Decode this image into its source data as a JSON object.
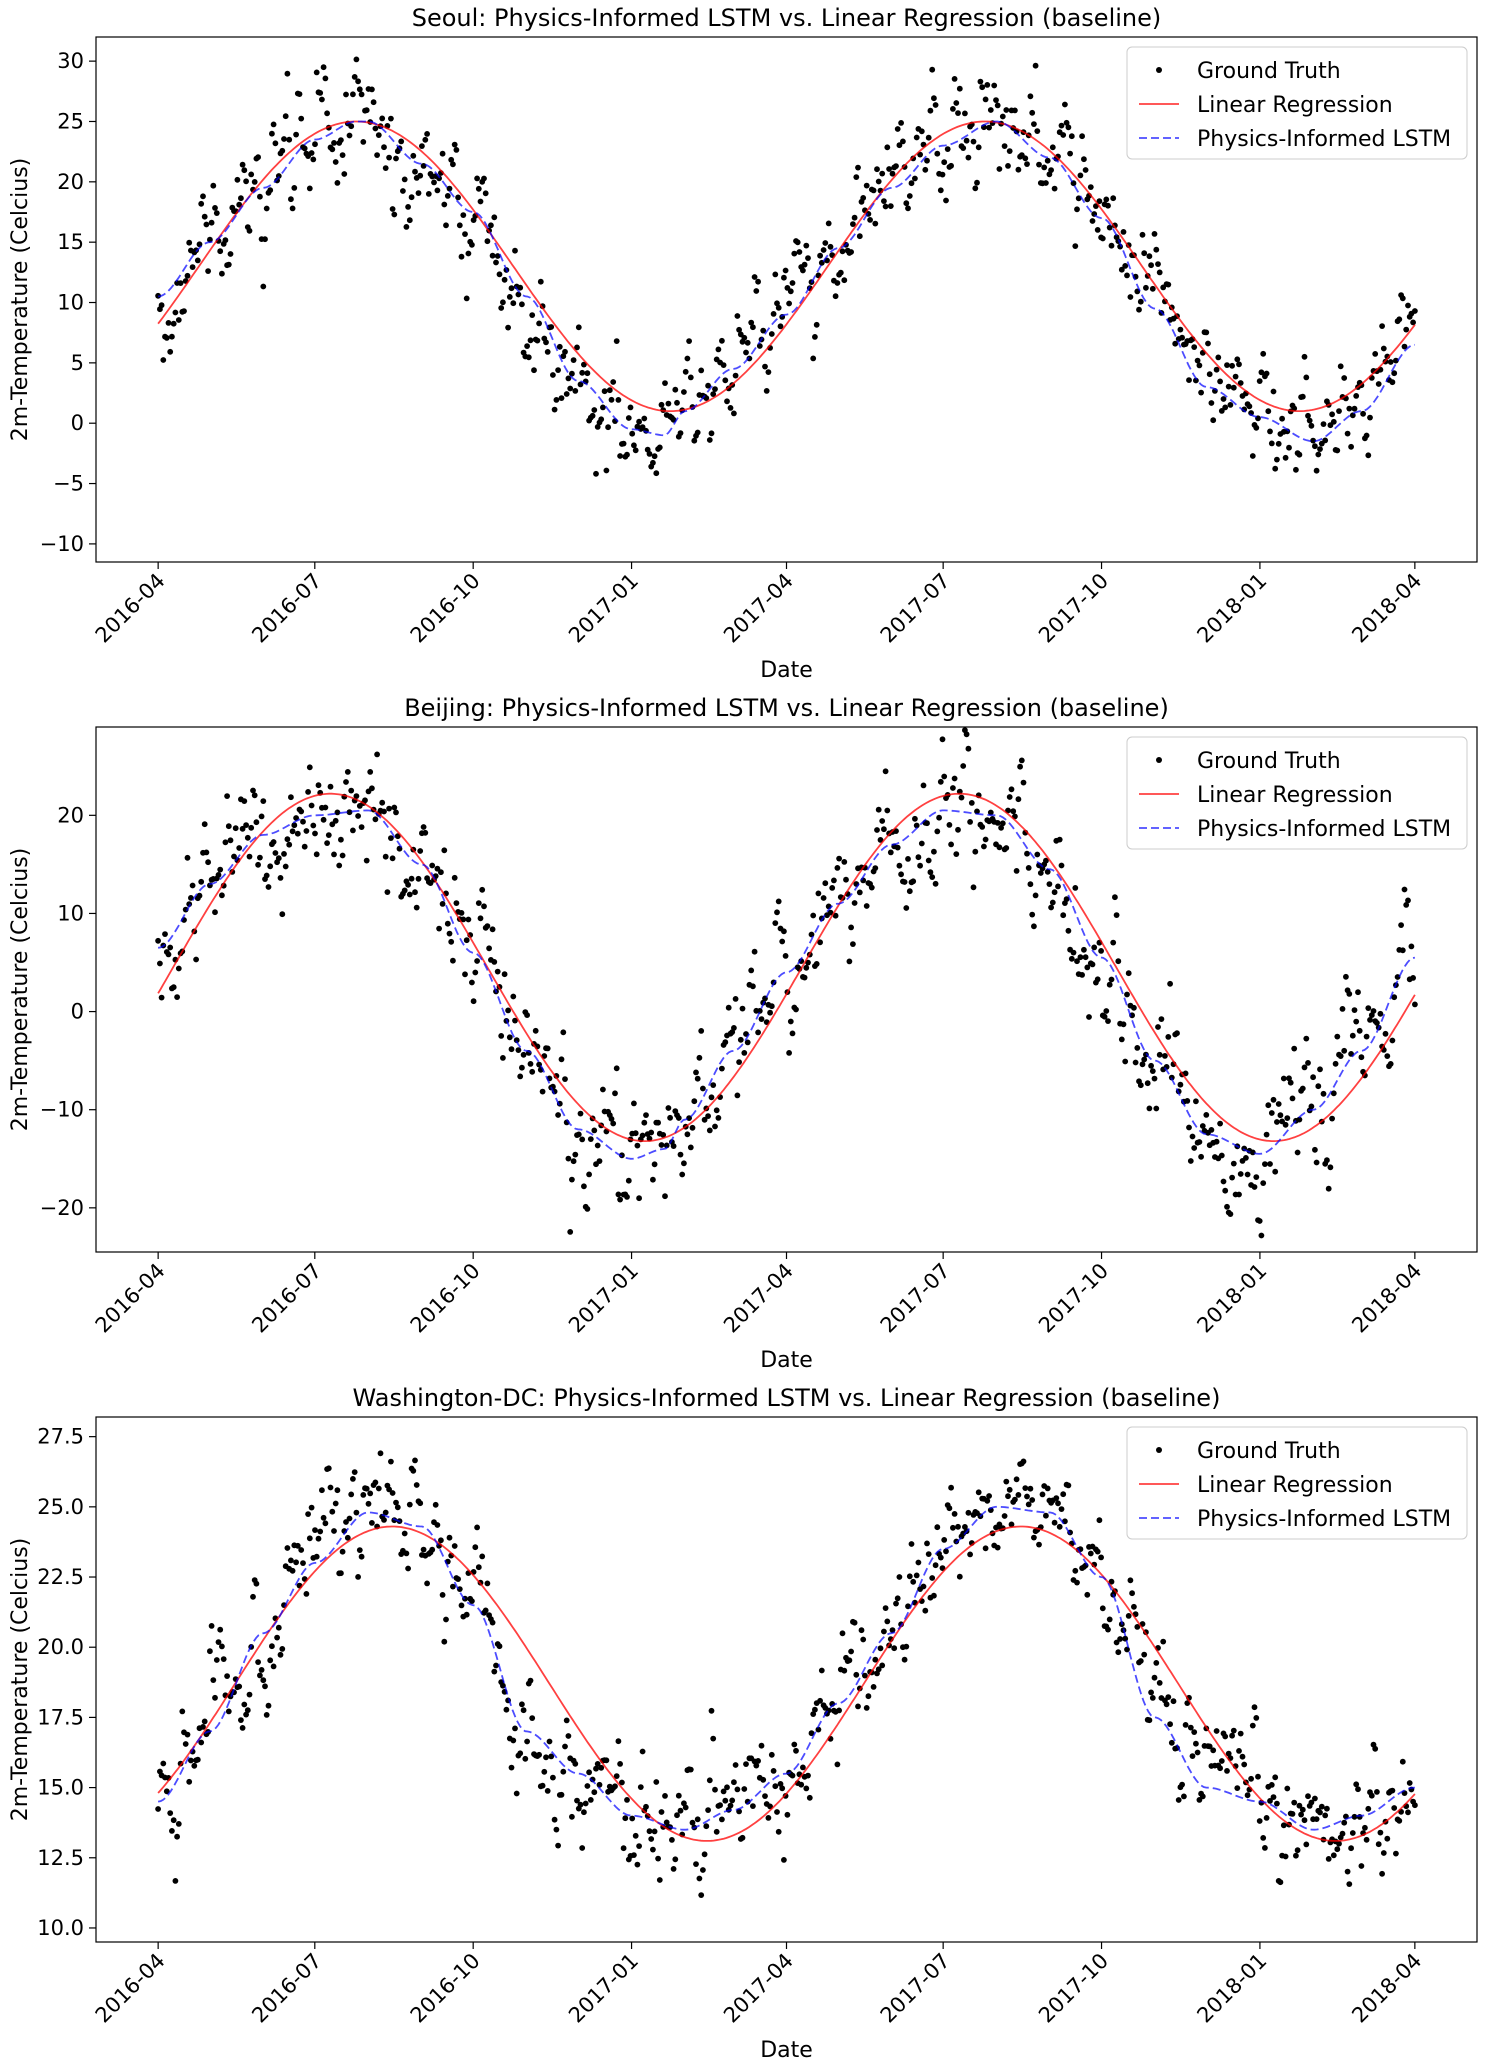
{
  "figure": {
    "legend": {
      "ground_truth": "Ground Truth",
      "linear_regression": "Linear Regression",
      "lstm": "Physics-Informed LSTM"
    },
    "colors": {
      "ground_truth": "#000000",
      "linear_regression": "#ff0000",
      "lstm": "#0000ff"
    }
  },
  "chart_data": [
    {
      "type": "line",
      "title": "Seoul: Physics-Informed LSTM vs. Linear Regression (baseline)",
      "xlabel": "Date",
      "ylabel": "2m-Temperature (Celcius)",
      "x_ticks": [
        "2016-04",
        "2016-07",
        "2016-10",
        "2017-01",
        "2017-04",
        "2017-07",
        "2017-10",
        "2018-01",
        "2018-04"
      ],
      "y_ticks": [
        -10,
        -5,
        0,
        5,
        10,
        15,
        20,
        25,
        30
      ],
      "ylim": [
        -11.5,
        32
      ],
      "legend_position": "top-right",
      "linear_regression": {
        "mean": 13.0,
        "amplitude": 12.0,
        "peak": "2016-07-25"
      },
      "lstm_points": [
        [
          "2016-04",
          10.5
        ],
        [
          "2016-05",
          15.0
        ],
        [
          "2016-06",
          19.5
        ],
        [
          "2016-07",
          23.5
        ],
        [
          "2016-07-25",
          25.0
        ],
        [
          "2016-08",
          25.0
        ],
        [
          "2016-09",
          21.5
        ],
        [
          "2016-10",
          17.5
        ],
        [
          "2016-11",
          10.5
        ],
        [
          "2016-12",
          3.5
        ],
        [
          "2017-01-01",
          -0.5
        ],
        [
          "2017-01-20",
          -1.0
        ],
        [
          "2017-02",
          1.0
        ],
        [
          "2017-03",
          4.5
        ],
        [
          "2017-04",
          9.0
        ],
        [
          "2017-05",
          14.5
        ],
        [
          "2017-06",
          19.5
        ],
        [
          "2017-07",
          23.0
        ],
        [
          "2017-08",
          25.0
        ],
        [
          "2017-09",
          22.0
        ],
        [
          "2017-10",
          17.0
        ],
        [
          "2017-11",
          9.5
        ],
        [
          "2017-12",
          3.0
        ],
        [
          "2018-01",
          0.5
        ],
        [
          "2018-02",
          -1.5
        ],
        [
          "2018-03",
          1.0
        ],
        [
          "2018-04",
          6.5
        ]
      ],
      "scatter": {
        "count": 730,
        "noise_sd": 2.6
      }
    },
    {
      "type": "line",
      "title": "Beijing: Physics-Informed LSTM vs. Linear Regression (baseline)",
      "xlabel": "Date",
      "ylabel": "2m-Temperature (Celcius)",
      "x_ticks": [
        "2016-04",
        "2016-07",
        "2016-10",
        "2017-01",
        "2017-04",
        "2017-07",
        "2017-10",
        "2018-01",
        "2018-04"
      ],
      "y_ticks": [
        -20,
        -10,
        0,
        10,
        20
      ],
      "ylim": [
        -24.5,
        29
      ],
      "legend_position": "top-right",
      "linear_regression": {
        "mean": 4.5,
        "amplitude": 17.7,
        "peak": "2016-07-10"
      },
      "lstm_points": [
        [
          "2016-04",
          6.5
        ],
        [
          "2016-05",
          13.0
        ],
        [
          "2016-06",
          18.0
        ],
        [
          "2016-07",
          20.0
        ],
        [
          "2016-08",
          20.5
        ],
        [
          "2016-09",
          15.0
        ],
        [
          "2016-10",
          6.0
        ],
        [
          "2016-11",
          -4.0
        ],
        [
          "2016-12",
          -12.0
        ],
        [
          "2017-01-01",
          -15.0
        ],
        [
          "2017-01-20",
          -14.0
        ],
        [
          "2017-02",
          -11.0
        ],
        [
          "2017-03",
          -4.0
        ],
        [
          "2017-04",
          4.0
        ],
        [
          "2017-05",
          11.0
        ],
        [
          "2017-06",
          17.0
        ],
        [
          "2017-07",
          20.5
        ],
        [
          "2017-08",
          20.0
        ],
        [
          "2017-09",
          14.5
        ],
        [
          "2017-10",
          5.5
        ],
        [
          "2017-11",
          -5.0
        ],
        [
          "2017-12",
          -12.5
        ],
        [
          "2018-01",
          -14.5
        ],
        [
          "2018-02",
          -10.0
        ],
        [
          "2018-03",
          -4.0
        ],
        [
          "2018-04",
          5.5
        ]
      ],
      "scatter": {
        "count": 730,
        "noise_sd": 3.3
      }
    },
    {
      "type": "line",
      "title": "Washington-DC: Physics-Informed LSTM vs. Linear Regression (baseline)",
      "xlabel": "Date",
      "ylabel": "2m-Temperature (Celcius)",
      "x_ticks": [
        "2016-04",
        "2016-07",
        "2016-10",
        "2017-01",
        "2017-04",
        "2017-07",
        "2017-10",
        "2018-01",
        "2018-04"
      ],
      "y_ticks": [
        "10.0",
        "12.5",
        "15.0",
        "17.5",
        "20.0",
        "22.5",
        "25.0",
        "27.5"
      ],
      "ylim": [
        9.5,
        28.2
      ],
      "legend_position": "top-right",
      "linear_regression": {
        "mean": 18.7,
        "amplitude": 5.6,
        "peak": "2016-08-15"
      },
      "lstm_points": [
        [
          "2016-04",
          14.5
        ],
        [
          "2016-05",
          17.0
        ],
        [
          "2016-06",
          20.5
        ],
        [
          "2016-07",
          23.0
        ],
        [
          "2016-08",
          24.8
        ],
        [
          "2016-09",
          24.3
        ],
        [
          "2016-10",
          21.5
        ],
        [
          "2016-11",
          17.0
        ],
        [
          "2016-12",
          15.5
        ],
        [
          "2017-01-01",
          14.0
        ],
        [
          "2017-02",
          13.5
        ],
        [
          "2017-03",
          14.2
        ],
        [
          "2017-04",
          15.5
        ],
        [
          "2017-05",
          18.0
        ],
        [
          "2017-06",
          20.5
        ],
        [
          "2017-07",
          23.5
        ],
        [
          "2017-08",
          25.0
        ],
        [
          "2017-09",
          24.8
        ],
        [
          "2017-10",
          22.5
        ],
        [
          "2017-11",
          17.5
        ],
        [
          "2017-12",
          15.0
        ],
        [
          "2018-01",
          14.5
        ],
        [
          "2018-02",
          13.5
        ],
        [
          "2018-03",
          14.0
        ],
        [
          "2018-04",
          15.0
        ]
      ],
      "scatter": {
        "count": 730,
        "noise_sd": 1.1
      }
    }
  ]
}
